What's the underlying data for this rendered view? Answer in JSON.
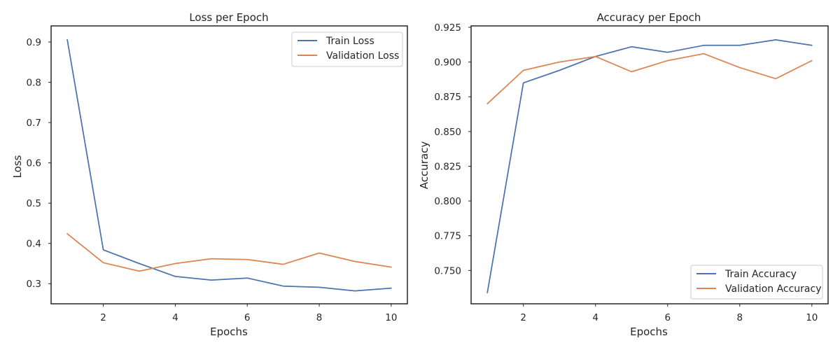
{
  "chart_data": [
    {
      "type": "line",
      "title": "Loss per Epoch",
      "xlabel": "Epochs",
      "ylabel": "Loss",
      "x": [
        1,
        2,
        3,
        4,
        5,
        6,
        7,
        8,
        9,
        10
      ],
      "xticks": [
        2,
        4,
        6,
        8,
        10
      ],
      "yticks": [
        0.3,
        0.4,
        0.5,
        0.6,
        0.7,
        0.8,
        0.9
      ],
      "ytick_labels": [
        "0.3",
        "0.4",
        "0.5",
        "0.6",
        "0.7",
        "0.8",
        "0.9"
      ],
      "xlim": [
        0.55,
        10.45
      ],
      "ylim": [
        0.25,
        0.94
      ],
      "grid": false,
      "legend_position": "top-right",
      "series": [
        {
          "name": "Train Loss",
          "color": "#4c72b0",
          "values": [
            0.906,
            0.384,
            0.35,
            0.318,
            0.309,
            0.314,
            0.294,
            0.291,
            0.282,
            0.289
          ]
        },
        {
          "name": "Validation Loss",
          "color": "#dd8452",
          "values": [
            0.424,
            0.352,
            0.331,
            0.35,
            0.362,
            0.36,
            0.348,
            0.376,
            0.355,
            0.341
          ]
        }
      ]
    },
    {
      "type": "line",
      "title": "Accuracy per Epoch",
      "xlabel": "Epochs",
      "ylabel": "Accuracy",
      "x": [
        1,
        2,
        3,
        4,
        5,
        6,
        7,
        8,
        9,
        10
      ],
      "xticks": [
        2,
        4,
        6,
        8,
        10
      ],
      "yticks": [
        0.75,
        0.775,
        0.8,
        0.825,
        0.85,
        0.875,
        0.9,
        0.925
      ],
      "ytick_labels": [
        "0.750",
        "0.775",
        "0.800",
        "0.825",
        "0.850",
        "0.875",
        "0.900",
        "0.925"
      ],
      "xlim": [
        0.55,
        10.45
      ],
      "ylim": [
        0.726,
        0.926
      ],
      "grid": false,
      "legend_position": "bottom-right",
      "series": [
        {
          "name": "Train Accuracy",
          "color": "#4c72b0",
          "values": [
            0.734,
            0.885,
            0.894,
            0.904,
            0.911,
            0.907,
            0.912,
            0.912,
            0.916,
            0.912
          ]
        },
        {
          "name": "Validation Accuracy",
          "color": "#dd8452",
          "values": [
            0.87,
            0.894,
            0.9,
            0.904,
            0.893,
            0.901,
            0.906,
            0.896,
            0.888,
            0.901
          ]
        }
      ]
    }
  ]
}
